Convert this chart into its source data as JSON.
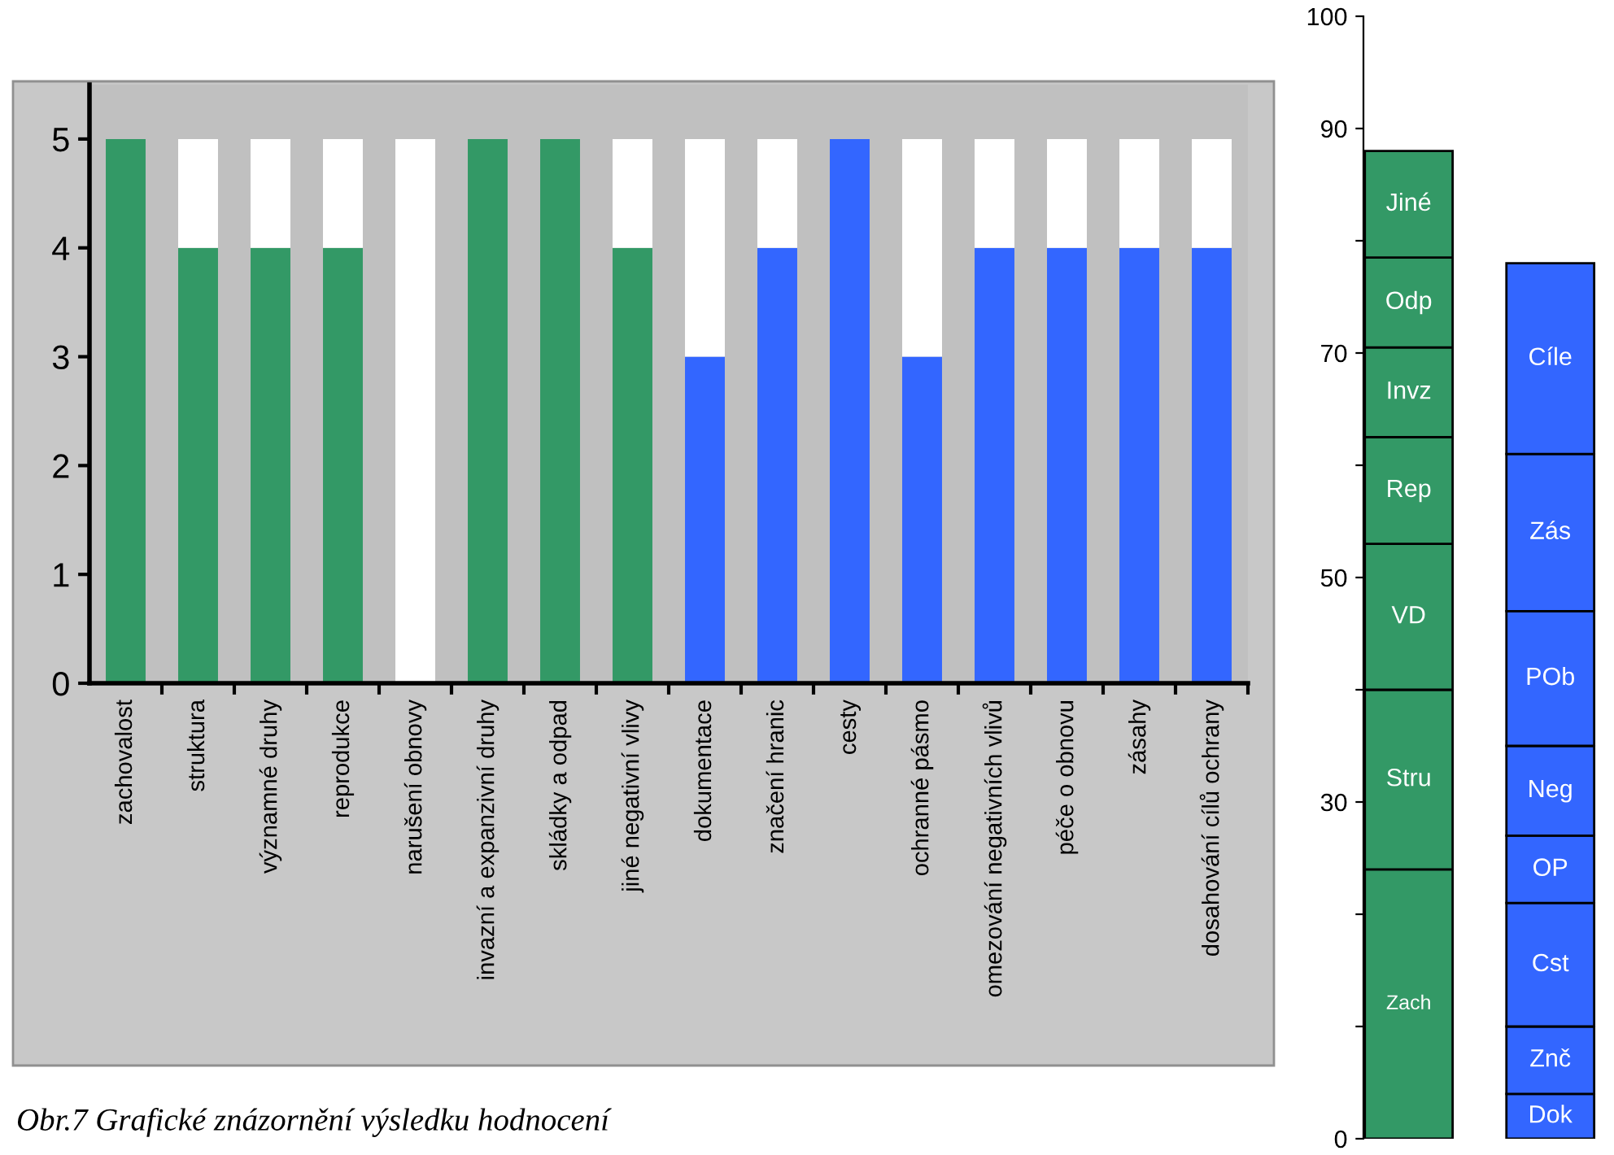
{
  "chart_data": [
    {
      "type": "bar",
      "stacked": true,
      "categories": [
        "zachovalost",
        "struktura",
        "významné druhy",
        "reprodukce",
        "narušení obnovy",
        "invazní a expanzivní druhy",
        "skládky a odpad",
        "jiné negativní vlivy",
        "dokumentace",
        "značení hranic",
        "cesty",
        "ochranné pásmo",
        "omezování negativních vlivů",
        "péče o obnovu",
        "zásahy",
        "dosahování cílů ochrany"
      ],
      "series": [
        {
          "values": [
            5,
            4,
            4,
            4,
            0,
            5,
            5,
            4,
            3,
            4,
            5,
            3,
            4,
            4,
            4,
            4
          ],
          "colors": [
            "#339966",
            "#339966",
            "#339966",
            "#339966",
            "#339966",
            "#339966",
            "#339966",
            "#339966",
            "#3366ff",
            "#3366ff",
            "#3366ff",
            "#3366ff",
            "#3366ff",
            "#3366ff",
            "#3366ff",
            "#3366ff"
          ]
        },
        {
          "values": [
            0,
            1,
            1,
            1,
            5,
            0,
            0,
            1,
            2,
            1,
            0,
            2,
            1,
            1,
            1,
            1
          ],
          "color": "#ffffff"
        }
      ],
      "ylim": [
        0,
        5.5
      ],
      "yticks": [
        0,
        1,
        2,
        3,
        4,
        5
      ],
      "grid": false,
      "legend": false,
      "annotations": [
        "Obr.7 Grafické znázornění výsledku hodnocení"
      ]
    },
    {
      "type": "bar",
      "stacked": true,
      "categories": [
        null,
        null
      ],
      "series": [
        {
          "name": "Zach",
          "color": "#339966",
          "values": [
            24,
            null
          ]
        },
        {
          "name": "Stru",
          "color": "#339966",
          "values": [
            16,
            null
          ]
        },
        {
          "name": "VD",
          "color": "#339966",
          "values": [
            13,
            null
          ]
        },
        {
          "name": "Rep",
          "color": "#339966",
          "values": [
            9.5,
            null
          ]
        },
        {
          "name": "Invz",
          "color": "#339966",
          "values": [
            8,
            null
          ]
        },
        {
          "name": "Odp",
          "color": "#339966",
          "values": [
            8,
            null
          ]
        },
        {
          "name": "Jiné",
          "color": "#339966",
          "values": [
            9.5,
            null
          ]
        },
        {
          "name": "Dok",
          "color": "#3366ff",
          "values": [
            null,
            4
          ]
        },
        {
          "name": "Znč",
          "color": "#3366ff",
          "values": [
            null,
            6
          ]
        },
        {
          "name": "Cst",
          "color": "#3366ff",
          "values": [
            null,
            11
          ]
        },
        {
          "name": "OP",
          "color": "#3366ff",
          "values": [
            null,
            6
          ]
        },
        {
          "name": "Neg",
          "color": "#3366ff",
          "values": [
            null,
            8
          ]
        },
        {
          "name": "POb",
          "color": "#3366ff",
          "values": [
            null,
            12
          ]
        },
        {
          "name": "Zás",
          "color": "#3366ff",
          "values": [
            null,
            14
          ]
        },
        {
          "name": "Cíle",
          "color": "#3366ff",
          "values": [
            null,
            17
          ]
        }
      ],
      "ylim": [
        0,
        100
      ],
      "yticks": [
        0,
        {
          "value": 10,
          "label": null
        },
        {
          "value": 20,
          "label": null
        },
        30,
        {
          "value": 40,
          "label": null
        },
        50,
        {
          "value": 60,
          "label": null
        },
        70,
        {
          "value": 80,
          "label": null
        },
        90,
        100
      ],
      "tick_labels": "y",
      "grid": false,
      "legend": false
    }
  ]
}
